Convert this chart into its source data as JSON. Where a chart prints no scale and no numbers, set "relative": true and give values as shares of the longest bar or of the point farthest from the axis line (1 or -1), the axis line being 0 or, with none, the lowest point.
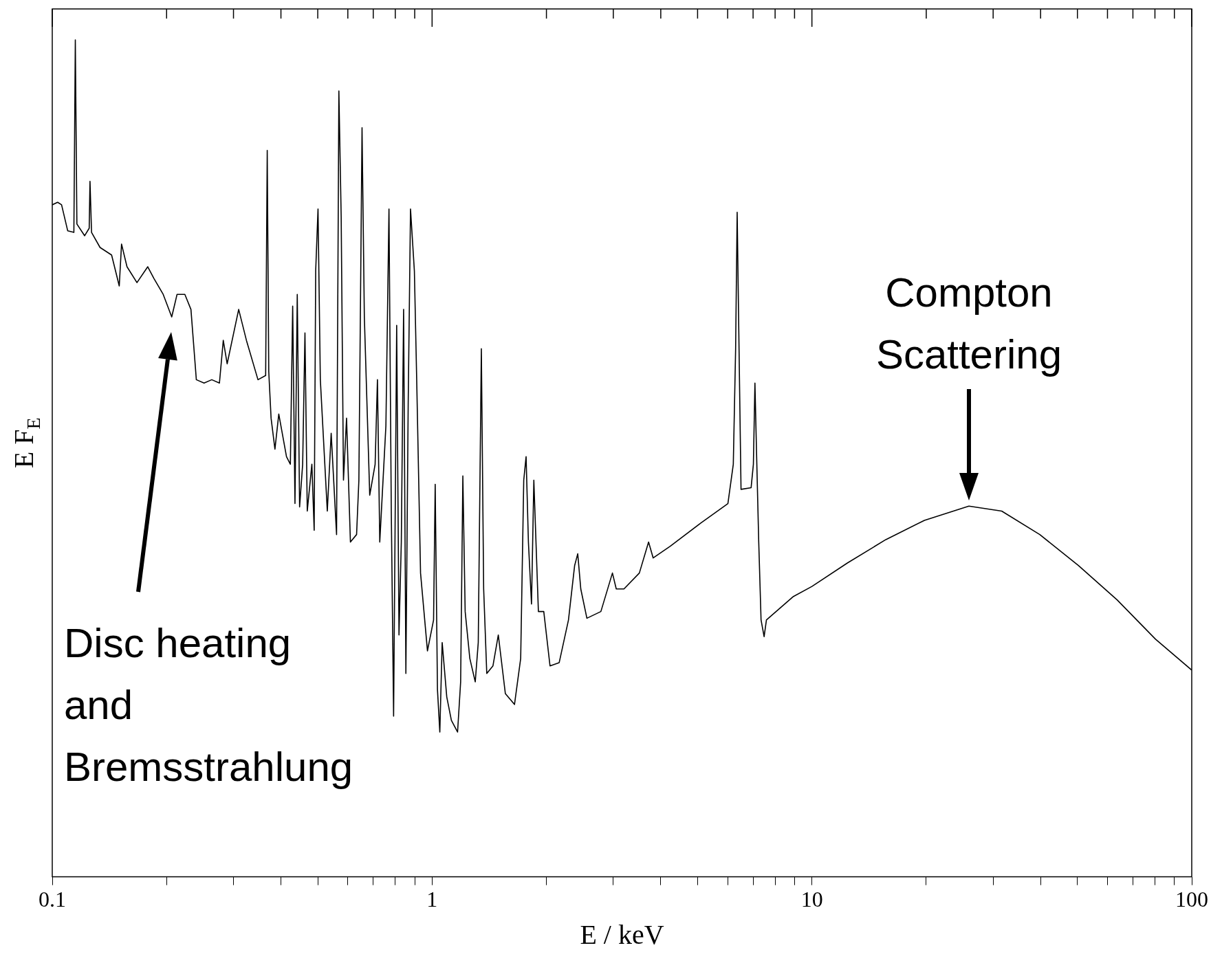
{
  "chart_data": {
    "type": "line",
    "relative": true,
    "log": "x",
    "xlabel": "E / keV",
    "ylabel": "E F$_{E}$",
    "legend": false,
    "marker": "none",
    "line_style": "solid",
    "xlim": [
      0.1,
      100
    ],
    "xticks": [
      0.1,
      {
        "value": 0.2,
        "label": null
      },
      {
        "value": 0.3,
        "label": null
      },
      {
        "value": 0.4,
        "label": null
      },
      {
        "value": 0.5,
        "label": null
      },
      {
        "value": 0.6,
        "label": null
      },
      {
        "value": 0.7,
        "label": null
      },
      {
        "value": 0.8,
        "label": null
      },
      {
        "value": 0.9,
        "label": null
      },
      1,
      {
        "value": 2,
        "label": null
      },
      {
        "value": 3,
        "label": null
      },
      {
        "value": 4,
        "label": null
      },
      {
        "value": 5,
        "label": null
      },
      {
        "value": 6,
        "label": null
      },
      {
        "value": 7,
        "label": null
      },
      {
        "value": 8,
        "label": null
      },
      {
        "value": 9,
        "label": null
      },
      10,
      {
        "value": 20,
        "label": null
      },
      {
        "value": 30,
        "label": null
      },
      {
        "value": 40,
        "label": null
      },
      {
        "value": 50,
        "label": null
      },
      {
        "value": 60,
        "label": null
      },
      {
        "value": 70,
        "label": null
      },
      {
        "value": 80,
        "label": null
      },
      {
        "value": 90,
        "label": null
      },
      100
    ],
    "x": [
      0.1,
      0.1033,
      0.1058,
      0.1098,
      0.114,
      0.115,
      0.1161,
      0.1217,
      0.1251,
      0.1257,
      0.1269,
      0.1336,
      0.1433,
      0.1501,
      0.1522,
      0.1573,
      0.1671,
      0.1784,
      0.1852,
      0.1959,
      0.2063,
      0.2131,
      0.2234,
      0.2318,
      0.2395,
      0.251,
      0.263,
      0.2755,
      0.282,
      0.2887,
      0.3096,
      0.3245,
      0.348,
      0.3646,
      0.3681,
      0.3715,
      0.3768,
      0.3857,
      0.3948,
      0.4137,
      0.4235,
      0.4295,
      0.4355,
      0.4416,
      0.4479,
      0.4563,
      0.4627,
      0.4692,
      0.4825,
      0.4893,
      0.4938,
      0.5008,
      0.5079,
      0.5298,
      0.5424,
      0.5604,
      0.5683,
      0.5763,
      0.5844,
      0.5954,
      0.6095,
      0.6327,
      0.6416,
      0.654,
      0.6632,
      0.6852,
      0.708,
      0.718,
      0.7282,
      0.7558,
      0.77,
      0.7809,
      0.7919,
      0.8068,
      0.8182,
      0.8298,
      0.8414,
      0.8531,
      0.8652,
      0.8774,
      0.8982,
      0.9109,
      0.9324,
      0.9723,
      1.009,
      1.019,
      1.033,
      1.048,
      1.063,
      1.093,
      1.124,
      1.167,
      1.189,
      1.205,
      1.222,
      1.257,
      1.299,
      1.323,
      1.348,
      1.367,
      1.393,
      1.446,
      1.494,
      1.559,
      1.648,
      1.711,
      1.743,
      1.768,
      1.793,
      1.827,
      1.853,
      1.905,
      1.968,
      2.044,
      2.161,
      2.286,
      2.373,
      2.418,
      2.463,
      2.556,
      2.782,
      2.984,
      3.054,
      3.2,
      3.513,
      3.715,
      3.82,
      4.236,
      5.106,
      6.009,
      6.209,
      6.297,
      6.356,
      6.416,
      6.507,
      6.917,
      7.013,
      7.079,
      7.145,
      7.244,
      7.347,
      7.484,
      7.59,
      8.94,
      10,
      12.4,
      15.66,
      19.78,
      25.9,
      31.6,
      39.8,
      50.3,
      63.6,
      80.3,
      100
    ],
    "series": [
      {
        "color": "#000000",
        "values": [
          0.803,
          0.806,
          0.803,
          0.772,
          0.77,
          1,
          0.78,
          0.766,
          0.775,
          0.831,
          0.77,
          0.752,
          0.743,
          0.706,
          0.756,
          0.729,
          0.71,
          0.729,
          0.715,
          0.696,
          0.669,
          0.696,
          0.696,
          0.678,
          0.594,
          0.59,
          0.594,
          0.59,
          0.641,
          0.613,
          0.678,
          0.641,
          0.594,
          0.599,
          0.868,
          0.604,
          0.548,
          0.511,
          0.553,
          0.502,
          0.493,
          0.682,
          0.446,
          0.696,
          0.442,
          0.493,
          0.65,
          0.437,
          0.493,
          0.414,
          0.724,
          0.798,
          0.594,
          0.437,
          0.53,
          0.409,
          0.939,
          0.789,
          0.474,
          0.548,
          0.4,
          0.409,
          0.474,
          0.895,
          0.669,
          0.456,
          0.493,
          0.594,
          0.4,
          0.539,
          0.798,
          0.437,
          0.192,
          0.659,
          0.289,
          0.4,
          0.678,
          0.243,
          0.567,
          0.798,
          0.724,
          0.594,
          0.363,
          0.27,
          0.307,
          0.469,
          0.224,
          0.173,
          0.28,
          0.215,
          0.187,
          0.173,
          0.233,
          0.479,
          0.317,
          0.261,
          0.233,
          0.28,
          0.631,
          0.344,
          0.243,
          0.252,
          0.289,
          0.219,
          0.206,
          0.261,
          0.474,
          0.502,
          0.4,
          0.326,
          0.474,
          0.317,
          0.317,
          0.252,
          0.256,
          0.307,
          0.372,
          0.386,
          0.344,
          0.309,
          0.317,
          0.363,
          0.344,
          0.344,
          0.363,
          0.4,
          0.381,
          0.395,
          0.423,
          0.446,
          0.493,
          0.631,
          0.794,
          0.659,
          0.463,
          0.465,
          0.493,
          0.59,
          0.511,
          0.4,
          0.307,
          0.287,
          0.307,
          0.335,
          0.347,
          0.375,
          0.403,
          0.426,
          0.443,
          0.437,
          0.409,
          0.372,
          0.331,
          0.284,
          0.247
        ]
      }
    ],
    "annotations": [
      "Disc heating\nand\nBremsstrahlung",
      "Compton\nScattering"
    ]
  }
}
